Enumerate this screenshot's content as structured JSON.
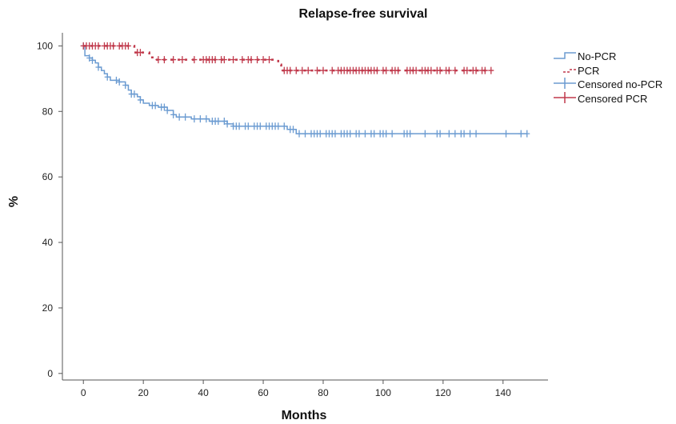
{
  "chart_data": {
    "type": "line",
    "title": "Relapse-free survival",
    "xlabel": "Months",
    "ylabel": "%",
    "xlim": [
      -7,
      155
    ],
    "ylim": [
      -2,
      104
    ],
    "xticks": [
      0,
      20,
      40,
      60,
      80,
      100,
      120,
      140
    ],
    "yticks": [
      0,
      20,
      40,
      60,
      80,
      100
    ],
    "grid": false,
    "legend_position": "top-right",
    "legend": [
      "No-PCR",
      "PCR",
      "Censored no-PCR",
      "Censored PCR"
    ],
    "colors": {
      "no_pcr": "#6b9bd1",
      "pcr": "#c0394b",
      "axis": "#555555"
    },
    "series": [
      {
        "name": "No-PCR",
        "color": "#6b9bd1",
        "steps": [
          [
            0,
            100
          ],
          [
            0.5,
            97
          ],
          [
            2,
            96.3
          ],
          [
            3,
            95.6
          ],
          [
            4,
            94.8
          ],
          [
            5,
            93.5
          ],
          [
            6,
            92.5
          ],
          [
            7,
            91.5
          ],
          [
            8,
            90.5
          ],
          [
            9,
            89.5
          ],
          [
            12,
            89
          ],
          [
            14,
            88
          ],
          [
            15,
            86.5
          ],
          [
            16,
            85.3
          ],
          [
            18,
            84.5
          ],
          [
            19,
            83.5
          ],
          [
            20,
            82.5
          ],
          [
            22,
            81.8
          ],
          [
            25,
            81.3
          ],
          [
            28,
            80.3
          ],
          [
            30,
            79
          ],
          [
            31,
            78.3
          ],
          [
            36,
            77.7
          ],
          [
            42,
            77
          ],
          [
            48,
            76.2
          ],
          [
            50,
            75.5
          ],
          [
            68,
            74.5
          ],
          [
            71,
            73.2
          ],
          [
            148,
            73.2
          ]
        ],
        "censored": [
          0,
          2,
          3,
          5,
          8,
          11,
          12,
          14,
          16,
          17,
          19,
          23,
          24,
          26,
          27,
          28,
          30,
          32,
          34,
          37,
          39,
          41,
          43,
          44,
          45,
          47,
          48,
          50,
          51,
          52,
          54,
          55,
          57,
          58,
          59,
          61,
          62,
          63,
          64,
          65,
          67,
          69,
          70,
          72,
          74,
          76,
          77,
          78,
          79,
          81,
          82,
          83,
          84,
          86,
          87,
          88,
          89,
          91,
          92,
          94,
          96,
          97,
          99,
          100,
          101,
          103,
          107,
          108,
          109,
          114,
          118,
          119,
          122,
          124,
          126,
          127,
          129,
          131,
          141,
          146,
          148
        ]
      },
      {
        "name": "PCR",
        "color": "#c0394b",
        "steps": [
          [
            0,
            100
          ],
          [
            17,
            98
          ],
          [
            22,
            96.5
          ],
          [
            24,
            95.8
          ],
          [
            65,
            94.3
          ],
          [
            66,
            92.5
          ],
          [
            136,
            92.5
          ]
        ],
        "censored": [
          0,
          1,
          2,
          3,
          4,
          5,
          7,
          8,
          9,
          10,
          12,
          13,
          14,
          15,
          18,
          19,
          25,
          27,
          30,
          33,
          37,
          40,
          41,
          42,
          43,
          44,
          46,
          47,
          50,
          53,
          55,
          56,
          58,
          60,
          62,
          67,
          68,
          69,
          71,
          73,
          75,
          78,
          80,
          83,
          85,
          86,
          87,
          88,
          89,
          90,
          91,
          92,
          93,
          94,
          95,
          96,
          97,
          98,
          100,
          101,
          103,
          104,
          105,
          108,
          109,
          110,
          111,
          113,
          114,
          115,
          116,
          118,
          119,
          121,
          122,
          124,
          127,
          128,
          130,
          131,
          133,
          134,
          136
        ]
      }
    ]
  }
}
